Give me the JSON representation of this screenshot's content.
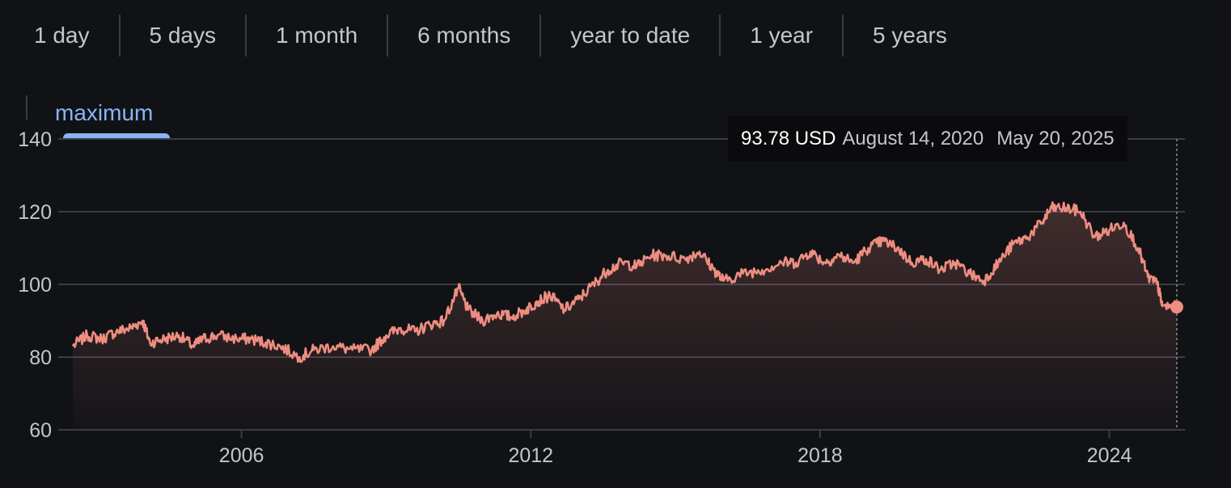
{
  "range_tabs": [
    "1 day",
    "5 days",
    "1 month",
    "6 months",
    "year to date",
    "1 year",
    "5 years"
  ],
  "active_tab": "maximum",
  "tooltip": {
    "price": "93.78 USD",
    "date_start": "August 14, 2020",
    "date_end": "May 20, 2025"
  },
  "colors": {
    "background": "#111216",
    "line": "#ee8d80",
    "active_tab": "#8ab4f8",
    "grid": "#3c3d42",
    "text": "#c4c6ca"
  },
  "chart_data": {
    "type": "area",
    "currency": "USD",
    "ylim": [
      60,
      140
    ],
    "yticks": [
      60,
      80,
      100,
      120,
      140
    ],
    "xlim": [
      2002.5,
      2025.4
    ],
    "xticks": [
      {
        "value": 2006,
        "label": "2006"
      },
      {
        "value": 2012,
        "label": "2012"
      },
      {
        "value": 2018,
        "label": "2018"
      },
      {
        "value": 2024,
        "label": "2024"
      }
    ],
    "grid": true,
    "last_value": 93.78,
    "series": [
      {
        "points": [
          [
            2002.5,
            83
          ],
          [
            2002.8,
            86
          ],
          [
            2003.1,
            85
          ],
          [
            2003.4,
            87
          ],
          [
            2003.7,
            88
          ],
          [
            2003.95,
            90
          ],
          [
            2004.1,
            84
          ],
          [
            2004.4,
            85
          ],
          [
            2004.7,
            86
          ],
          [
            2005.0,
            83
          ],
          [
            2005.2,
            85
          ],
          [
            2005.5,
            86
          ],
          [
            2005.9,
            85
          ],
          [
            2006.2,
            85
          ],
          [
            2006.5,
            84
          ],
          [
            2006.8,
            83
          ],
          [
            2007.2,
            80
          ],
          [
            2007.5,
            82
          ],
          [
            2007.9,
            83
          ],
          [
            2008.3,
            82
          ],
          [
            2008.7,
            82
          ],
          [
            2009.0,
            86
          ],
          [
            2009.3,
            88
          ],
          [
            2009.6,
            87
          ],
          [
            2009.9,
            89
          ],
          [
            2010.2,
            90
          ],
          [
            2010.5,
            99
          ],
          [
            2010.7,
            93
          ],
          [
            2011.0,
            90
          ],
          [
            2011.3,
            92
          ],
          [
            2011.6,
            91
          ],
          [
            2011.9,
            93
          ],
          [
            2012.1,
            95
          ],
          [
            2012.4,
            97
          ],
          [
            2012.7,
            93
          ],
          [
            2013.0,
            96
          ],
          [
            2013.3,
            100
          ],
          [
            2013.6,
            104
          ],
          [
            2013.9,
            106
          ],
          [
            2014.2,
            105
          ],
          [
            2014.5,
            108
          ],
          [
            2014.8,
            108
          ],
          [
            2015.2,
            107
          ],
          [
            2015.5,
            109
          ],
          [
            2015.8,
            104
          ],
          [
            2016.0,
            101
          ],
          [
            2016.4,
            103
          ],
          [
            2016.8,
            104
          ],
          [
            2017.2,
            106
          ],
          [
            2017.5,
            106
          ],
          [
            2017.8,
            109
          ],
          [
            2018.1,
            106
          ],
          [
            2018.4,
            108
          ],
          [
            2018.7,
            106
          ],
          [
            2019.0,
            110
          ],
          [
            2019.3,
            112
          ],
          [
            2019.6,
            110
          ],
          [
            2019.9,
            106
          ],
          [
            2020.2,
            107
          ],
          [
            2020.5,
            104
          ],
          [
            2020.8,
            106
          ],
          [
            2021.1,
            103
          ],
          [
            2021.4,
            101
          ],
          [
            2021.7,
            106
          ],
          [
            2022.0,
            111
          ],
          [
            2022.3,
            113
          ],
          [
            2022.6,
            117
          ],
          [
            2022.8,
            121
          ],
          [
            2023.1,
            121
          ],
          [
            2023.4,
            120
          ],
          [
            2023.7,
            113
          ],
          [
            2024.0,
            115
          ],
          [
            2024.3,
            117
          ],
          [
            2024.6,
            110
          ],
          [
            2024.8,
            102
          ],
          [
            2025.0,
            100
          ],
          [
            2025.1,
            94
          ],
          [
            2025.4,
            93.78
          ]
        ]
      }
    ]
  }
}
